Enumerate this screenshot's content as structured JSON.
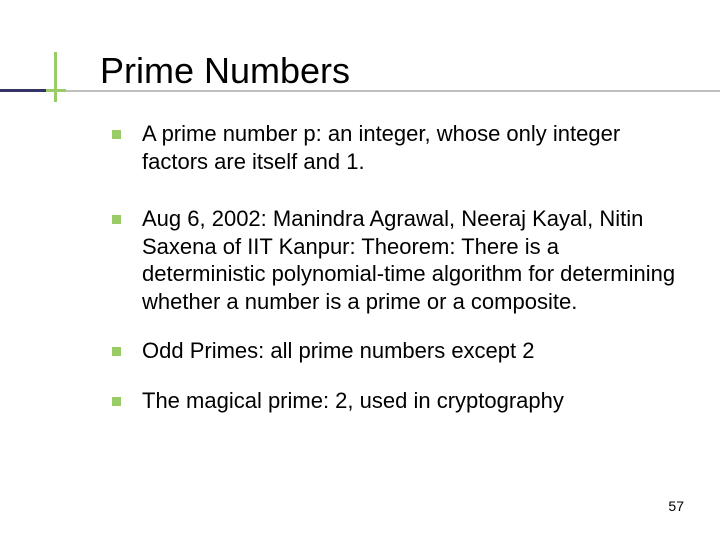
{
  "colors": {
    "accent": "#99cc66",
    "dark": "#333366",
    "rule": "#c0c0c0",
    "text": "#000000",
    "background": "#ffffff"
  },
  "typography": {
    "title_fontsize": 36,
    "body_fontsize": 22,
    "pagenum_fontsize": 14,
    "font_family": "Verdana"
  },
  "title": "Prime Numbers",
  "bullets": {
    "b1": "A prime number p: an integer, whose only integer factors are itself and 1.",
    "b2": "Aug 6, 2002: Manindra Agrawal, Neeraj Kayal, Nitin Saxena of IIT Kanpur:\nTheorem: There is a deterministic polynomial-time algorithm for determining whether a number is a prime or a composite.",
    "b3": "Odd Primes: all prime numbers except 2",
    "b4": "The magical prime: 2, used in cryptography"
  },
  "page_number": "57"
}
